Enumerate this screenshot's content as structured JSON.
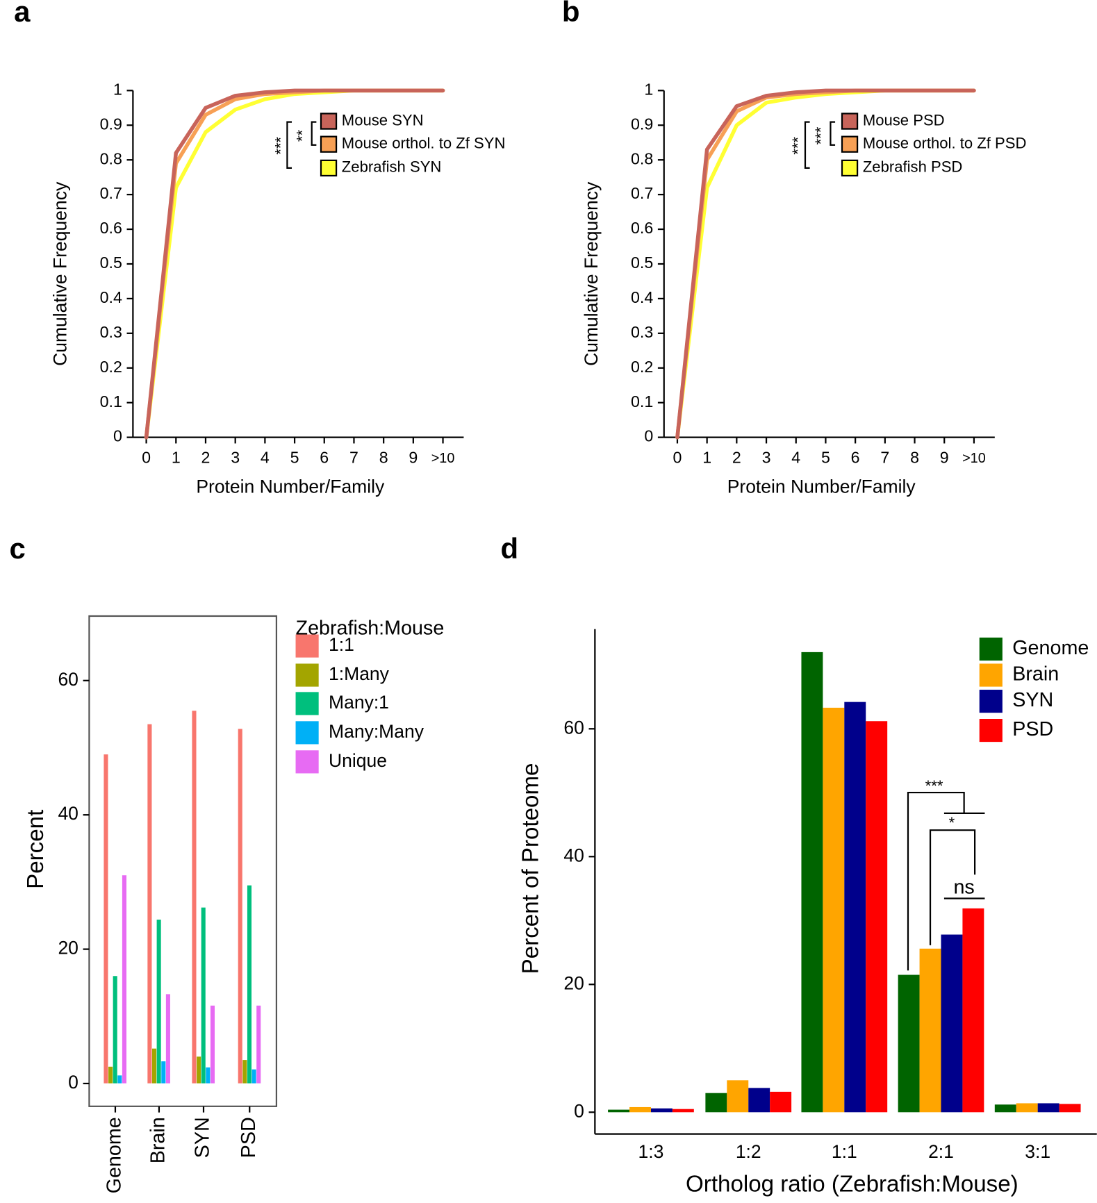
{
  "chart_data": [
    {
      "type": "line",
      "panel_label": "a",
      "x_label": "Protein Number/Family",
      "y_label": "Cumulative Frequency",
      "x": [
        0,
        1,
        2,
        3,
        4,
        5,
        6,
        7,
        8,
        9,
        10
      ],
      "series": [
        {
          "name": "Mouse SYN",
          "color": "#c8645a",
          "values": [
            0,
            0.82,
            0.95,
            0.985,
            0.995,
            1,
            1,
            1,
            1,
            1,
            1
          ]
        },
        {
          "name": "Mouse orthol. to Zf SYN",
          "color": "#f7a055",
          "values": [
            0,
            0.79,
            0.93,
            0.975,
            0.99,
            0.995,
            1,
            1,
            1,
            1,
            1
          ]
        },
        {
          "name": "Zebrafish SYN",
          "color": "#ffff33",
          "values": [
            0,
            0.72,
            0.88,
            0.945,
            0.975,
            0.99,
            0.995,
            1,
            1,
            1,
            1
          ]
        }
      ],
      "xlim": [
        -0.45,
        10.7
      ],
      "xticks": [
        0,
        1,
        2,
        3,
        4,
        5,
        6,
        7,
        8,
        9,
        {
          "value": 10,
          "label": ">10"
        }
      ],
      "ylim": [
        0,
        1
      ],
      "yticks": [
        0,
        0.1,
        0.2,
        0.3,
        0.4,
        0.5,
        0.6,
        0.7,
        0.8,
        0.9,
        1
      ],
      "annotations": [
        "***",
        "**"
      ]
    },
    {
      "type": "line",
      "panel_label": "b",
      "x_label": "Protein Number/Family",
      "y_label": "Cumulative Frequency",
      "x": [
        0,
        1,
        2,
        3,
        4,
        5,
        6,
        7,
        8,
        9,
        10
      ],
      "series": [
        {
          "name": "Mouse PSD",
          "color": "#c8645a",
          "values": [
            0,
            0.83,
            0.955,
            0.985,
            0.995,
            1,
            1,
            1,
            1,
            1,
            1
          ]
        },
        {
          "name": "Mouse orthol. to Zf PSD",
          "color": "#f7a055",
          "values": [
            0,
            0.8,
            0.94,
            0.98,
            0.99,
            0.995,
            1,
            1,
            1,
            1,
            1
          ]
        },
        {
          "name": "Zebrafish PSD",
          "color": "#ffff33",
          "values": [
            0,
            0.72,
            0.9,
            0.965,
            0.98,
            0.99,
            0.995,
            1,
            1,
            1,
            1
          ]
        }
      ],
      "xlim": [
        -0.45,
        10.7
      ],
      "xticks": [
        0,
        1,
        2,
        3,
        4,
        5,
        6,
        7,
        8,
        9,
        {
          "value": 10,
          "label": ">10"
        }
      ],
      "ylim": [
        0,
        1
      ],
      "yticks": [
        0,
        0.1,
        0.2,
        0.3,
        0.4,
        0.5,
        0.6,
        0.7,
        0.8,
        0.9,
        1
      ],
      "annotations": [
        "***",
        "***"
      ]
    },
    {
      "type": "bar",
      "panel_label": "c",
      "y_label": "Percent",
      "legend_title": "Zebrafish:Mouse",
      "categories": [
        "Genome",
        "Brain",
        "SYN",
        "PSD"
      ],
      "series": [
        {
          "name": "1:1",
          "color": "#f8766d",
          "values": [
            49,
            53.5,
            55.5,
            52.8
          ]
        },
        {
          "name": "1:Many",
          "color": "#a3a500",
          "values": [
            2.5,
            5.2,
            4,
            3.5
          ]
        },
        {
          "name": "Many:1",
          "color": "#00bf7d",
          "values": [
            16,
            24.4,
            26.2,
            29.5
          ]
        },
        {
          "name": "Many:Many",
          "color": "#00b0f6",
          "values": [
            1.2,
            3.3,
            2.4,
            2.1
          ]
        },
        {
          "name": "Unique",
          "color": "#e76bf3",
          "values": [
            31,
            13.3,
            11.6,
            11.6
          ]
        }
      ],
      "ylim": [
        -3.4,
        69.6
      ],
      "yticks": [
        0,
        20,
        40,
        60
      ]
    },
    {
      "type": "bar",
      "panel_label": "d",
      "y_label": "Percent of Proteome",
      "x_label": "Ortholog ratio (Zebrafish:Mouse)",
      "categories": [
        "1:3",
        "1:2",
        "1:1",
        "2:1",
        "3:1"
      ],
      "series": [
        {
          "name": "Genome",
          "color": "#006400",
          "values": [
            0.4,
            3,
            72,
            21.5,
            1.2
          ]
        },
        {
          "name": "Brain",
          "color": "#ffa500",
          "values": [
            0.8,
            5,
            63.3,
            25.6,
            1.4
          ]
        },
        {
          "name": "SYN",
          "color": "#00008b",
          "values": [
            0.6,
            3.8,
            64.2,
            27.8,
            1.4
          ]
        },
        {
          "name": "PSD",
          "color": "#ff0000",
          "values": [
            0.5,
            3.2,
            61.2,
            31.9,
            1.3
          ]
        }
      ],
      "ylim": [
        -3.4,
        75.6
      ],
      "yticks": [
        0,
        20,
        40,
        60
      ],
      "annotations": [
        "***",
        "*",
        "ns"
      ]
    }
  ]
}
